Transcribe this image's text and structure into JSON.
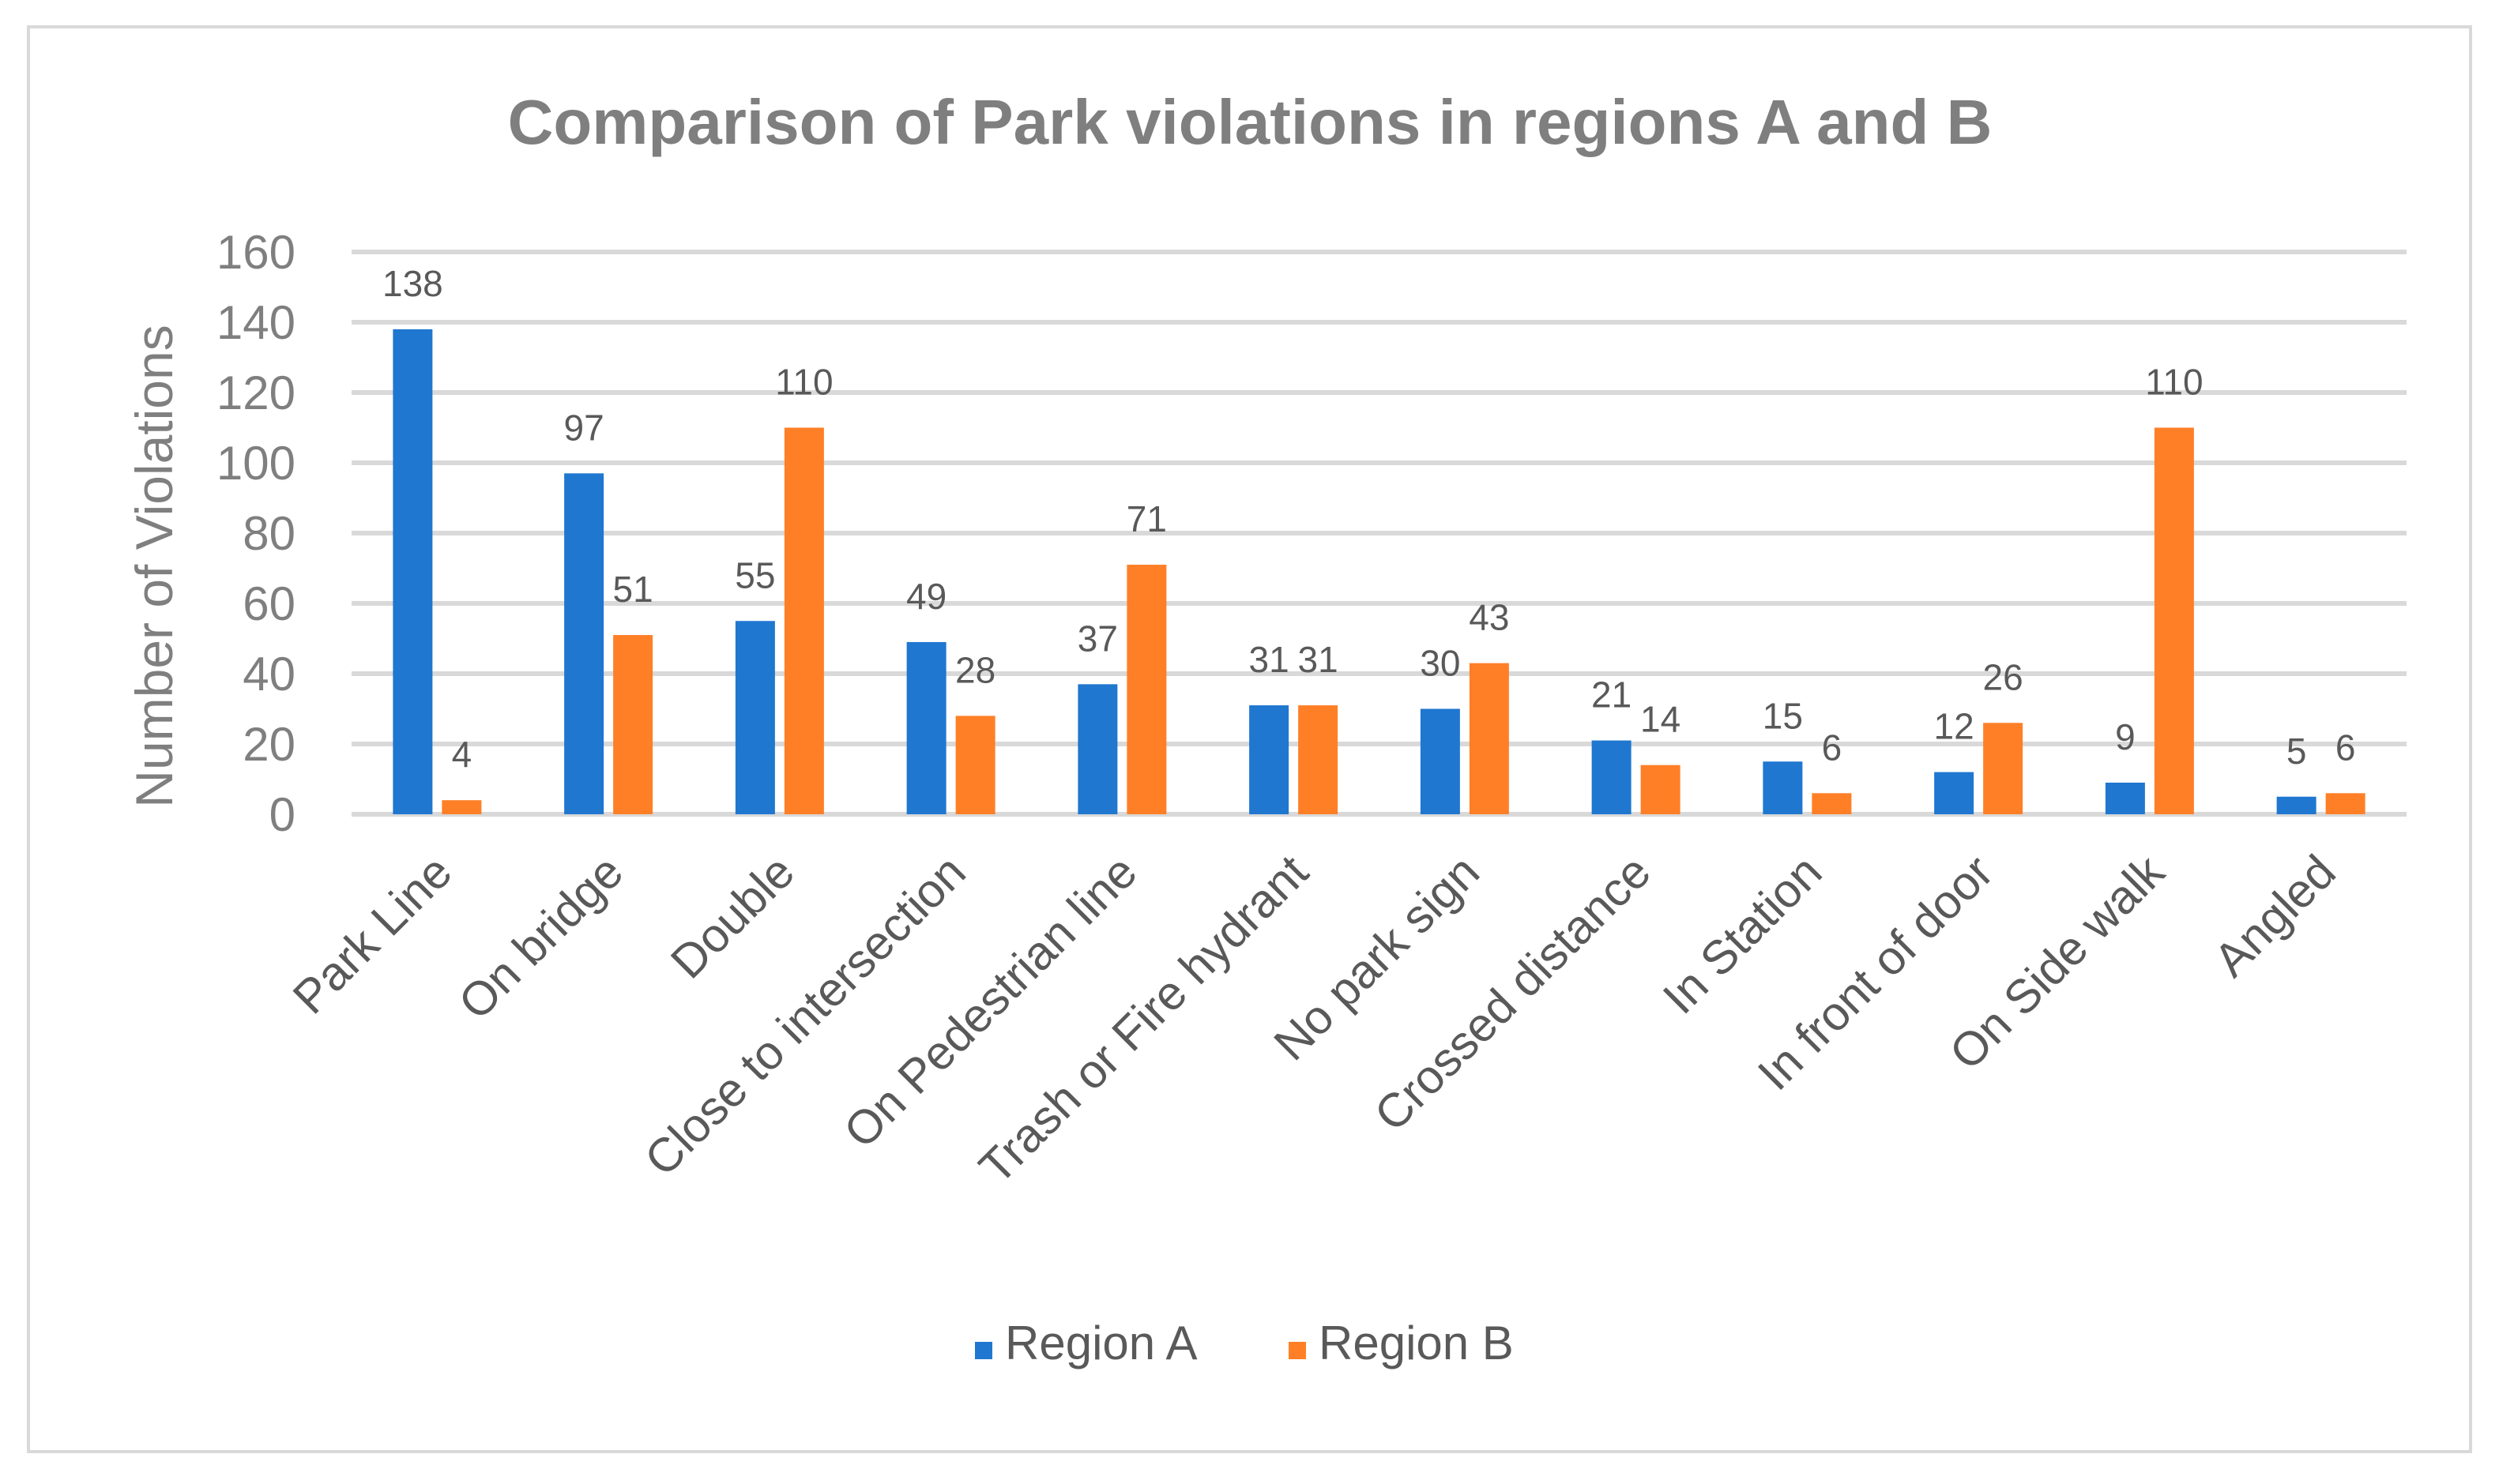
{
  "chart_data": {
    "type": "bar",
    "title": "Comparison of Park violations in regions A and B",
    "xlabel": "",
    "ylabel": "Number of Violations",
    "ylim": [
      0,
      160
    ],
    "yticks": [
      0,
      20,
      40,
      60,
      80,
      100,
      120,
      140,
      160
    ],
    "grid": true,
    "legend_position": "bottom",
    "categories": [
      "Park Line",
      "On bridge",
      "Double",
      "Close to intersection",
      "On Pedestrian line",
      "Trash or Fire hydrant",
      "No park sign",
      "Crossed distance",
      "In Station",
      "In front of door",
      "On Side walk",
      "Angled"
    ],
    "series": [
      {
        "name": "Region A",
        "color": "#1f77d0",
        "values": [
          138,
          97,
          55,
          49,
          37,
          31,
          30,
          21,
          15,
          12,
          9,
          5
        ]
      },
      {
        "name": "Region B",
        "color": "#ff7f27",
        "values": [
          4,
          51,
          110,
          28,
          71,
          31,
          43,
          14,
          6,
          26,
          110,
          6
        ]
      }
    ]
  }
}
